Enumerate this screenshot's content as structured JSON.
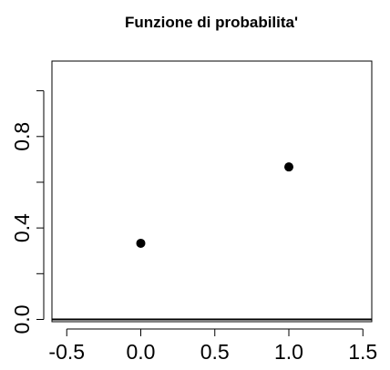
{
  "chart_data": {
    "type": "scatter",
    "title": "Funzione di probabilita'",
    "xlabel": "",
    "ylabel": "",
    "xlim": [
      -0.6,
      1.56
    ],
    "ylim": [
      -0.01,
      1.13
    ],
    "x_ticks": [
      -0.5,
      0.0,
      0.5,
      1.0,
      1.5
    ],
    "x_tick_labels": [
      "-0.5",
      "0.0",
      "0.5",
      "1.0",
      "1.5"
    ],
    "y_ticks": [
      0.0,
      0.2,
      0.4,
      0.6,
      0.8,
      1.0
    ],
    "y_tick_labels": [
      "0.0",
      "",
      "0.4",
      "",
      "0.8",
      ""
    ],
    "points": [
      {
        "x": 0,
        "y": 0.333
      },
      {
        "x": 1,
        "y": 0.667
      }
    ],
    "hline": 0,
    "grid": false,
    "colors": {
      "points": "#000000",
      "axis": "#000000",
      "background": "#ffffff"
    }
  }
}
